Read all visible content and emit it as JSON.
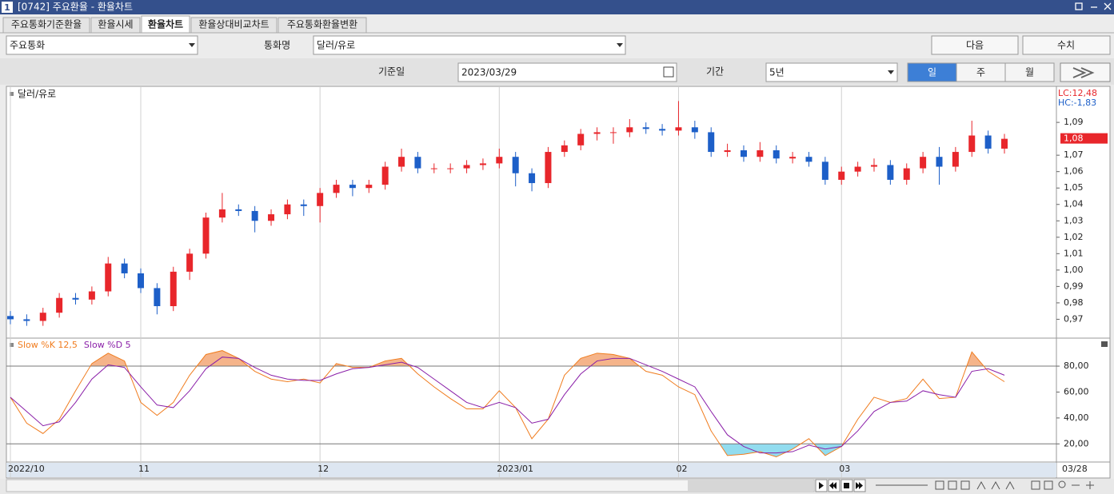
{
  "window": {
    "number": "1",
    "title": "[0742] 주요환율 - 환율차트"
  },
  "tabs": [
    "주요통화기준환율",
    "환율시세",
    "환율차트",
    "환율상대비교차트",
    "주요통화환율변환"
  ],
  "active_tab": 2,
  "controls": {
    "group": "주요통화",
    "currency_label": "통화명",
    "currency": "달러/유로",
    "next": "다음",
    "values": "수치",
    "date_label": "기준일",
    "date": "2023/03/29",
    "period_label": "기간",
    "period": "5년",
    "intervals": [
      "일",
      "주",
      "월"
    ],
    "active_interval": 0
  },
  "chart_data": [
    {
      "type": "candlestick",
      "title": "달러/유로",
      "up_color": "#e8262b",
      "down_color": "#1d5fc8",
      "open": [
        0.972,
        0.97,
        0.969,
        0.974,
        0.983,
        0.982,
        0.987,
        1.004,
        0.998,
        0.989,
        0.978,
        0.999,
        1.01,
        1.032,
        1.037,
        1.036,
        1.03,
        1.034,
        1.04,
        1.039,
        1.047,
        1.052,
        1.05,
        1.052,
        1.063,
        1.069,
        1.062,
        1.062,
        1.062,
        1.064,
        1.065,
        1.069,
        1.059,
        1.053,
        1.072,
        1.076,
        1.083,
        1.084,
        1.084,
        1.087,
        1.086,
        1.085,
        1.087,
        1.084,
        1.072,
        1.073,
        1.069,
        1.073,
        1.068,
        1.069,
        1.066,
        1.055,
        1.06,
        1.063,
        1.064,
        1.055,
        1.062,
        1.069,
        1.063,
        1.072,
        1.082,
        1.074
      ],
      "high": [
        0.975,
        0.973,
        0.977,
        0.986,
        0.986,
        0.99,
        1.008,
        1.007,
        1.001,
        0.992,
        1.002,
        1.013,
        1.035,
        1.047,
        1.04,
        1.039,
        1.037,
        1.043,
        1.043,
        1.05,
        1.055,
        1.055,
        1.055,
        1.066,
        1.074,
        1.072,
        1.065,
        1.065,
        1.067,
        1.068,
        1.074,
        1.072,
        1.062,
        1.075,
        1.079,
        1.086,
        1.087,
        1.087,
        1.092,
        1.09,
        1.089,
        1.103,
        1.091,
        1.087,
        1.077,
        1.076,
        1.078,
        1.076,
        1.072,
        1.072,
        1.069,
        1.063,
        1.066,
        1.068,
        1.067,
        1.065,
        1.072,
        1.075,
        1.075,
        1.091,
        1.085,
        1.083
      ],
      "low": [
        0.967,
        0.966,
        0.966,
        0.971,
        0.979,
        0.979,
        0.984,
        0.995,
        0.986,
        0.973,
        0.975,
        0.994,
        1.007,
        1.029,
        1.033,
        1.023,
        1.027,
        1.031,
        1.033,
        1.029,
        1.044,
        1.045,
        1.047,
        1.049,
        1.06,
        1.059,
        1.059,
        1.059,
        1.059,
        1.061,
        1.062,
        1.051,
        1.048,
        1.05,
        1.069,
        1.073,
        1.079,
        1.077,
        1.081,
        1.083,
        1.082,
        1.082,
        1.08,
        1.069,
        1.069,
        1.066,
        1.066,
        1.065,
        1.065,
        1.063,
        1.052,
        1.052,
        1.057,
        1.06,
        1.052,
        1.052,
        1.059,
        1.052,
        1.06,
        1.069,
        1.071,
        1.071
      ],
      "close": [
        0.97,
        0.969,
        0.974,
        0.983,
        0.982,
        0.987,
        1.004,
        0.998,
        0.989,
        0.978,
        0.999,
        1.01,
        1.032,
        1.037,
        1.036,
        1.03,
        1.034,
        1.04,
        1.039,
        1.047,
        1.052,
        1.05,
        1.052,
        1.063,
        1.069,
        1.062,
        1.062,
        1.062,
        1.064,
        1.065,
        1.069,
        1.059,
        1.053,
        1.072,
        1.076,
        1.083,
        1.084,
        1.084,
        1.087,
        1.086,
        1.085,
        1.087,
        1.084,
        1.072,
        1.073,
        1.069,
        1.073,
        1.068,
        1.069,
        1.066,
        1.055,
        1.06,
        1.063,
        1.064,
        1.055,
        1.062,
        1.069,
        1.063,
        1.072,
        1.082,
        1.074,
        1.08
      ],
      "last_label": "1,08",
      "lc_label": "LC:12,48",
      "hc_label": "HC:-1,83",
      "ylim": [
        0.959,
        1.111
      ],
      "yticks": [
        {
          "value": 0.97,
          "label": "0,97"
        },
        {
          "value": 0.98,
          "label": "0,98"
        },
        {
          "value": 0.99,
          "label": "0,99"
        },
        {
          "value": 1.0,
          "label": "1,00"
        },
        {
          "value": 1.01,
          "label": "1,01"
        },
        {
          "value": 1.02,
          "label": "1,02"
        },
        {
          "value": 1.03,
          "label": "1,03"
        },
        {
          "value": 1.04,
          "label": "1,04"
        },
        {
          "value": 1.05,
          "label": "1,05"
        },
        {
          "value": 1.06,
          "label": "1,06"
        },
        {
          "value": 1.07,
          "label": "1,07"
        },
        {
          "value": 1.09,
          "label": "1,09"
        }
      ]
    },
    {
      "type": "line",
      "categories": [
        "2022/10",
        null,
        null,
        null,
        null,
        null,
        null,
        null,
        "11",
        null,
        null,
        null,
        null,
        null,
        null,
        null,
        null,
        null,
        null,
        "12",
        null,
        null,
        null,
        null,
        null,
        null,
        null,
        null,
        null,
        null,
        "2023/01",
        null,
        null,
        null,
        null,
        null,
        null,
        null,
        null,
        null,
        null,
        "02",
        null,
        null,
        null,
        null,
        null,
        null,
        null,
        null,
        null,
        "03",
        null,
        null,
        null,
        null,
        null,
        null,
        null,
        null,
        null,
        null
      ],
      "last_date": "03/28",
      "series": [
        {
          "name": "Slow %K 12,5",
          "color": "#f07c1e",
          "values": [
            56,
            36,
            28,
            39,
            61,
            82,
            90,
            84,
            52,
            42,
            52,
            73,
            89,
            92,
            86,
            76,
            70,
            68,
            70,
            67,
            82,
            79,
            79,
            84,
            86,
            74,
            64,
            55,
            47,
            47,
            61,
            48,
            24,
            39,
            73,
            86,
            90,
            89,
            86,
            76,
            73,
            64,
            58,
            30,
            11,
            12,
            14,
            10,
            16,
            24,
            11,
            18,
            39,
            56,
            52,
            55,
            70,
            55,
            56,
            91,
            76,
            68
          ]
        },
        {
          "name": "Slow %D 5",
          "color": "#8a1fa8",
          "values": [
            56,
            45,
            34,
            37,
            52,
            70,
            81,
            79,
            64,
            50,
            48,
            61,
            78,
            87,
            86,
            79,
            73,
            70,
            69,
            69,
            74,
            78,
            79,
            81,
            83,
            79,
            70,
            61,
            52,
            48,
            52,
            48,
            36,
            39,
            58,
            74,
            84,
            86,
            86,
            81,
            76,
            70,
            64,
            45,
            27,
            18,
            13,
            13,
            14,
            19,
            16,
            18,
            30,
            45,
            52,
            53,
            61,
            58,
            56,
            76,
            78,
            73
          ]
        }
      ],
      "overbought": 80,
      "oversold": 20,
      "overbought_fill": "#f5b48a",
      "oversold_fill": "#92dcef",
      "ylim": [
        6,
        101
      ],
      "yticks": [
        {
          "value": 20,
          "label": "20,00"
        },
        {
          "value": 40,
          "label": "40,00"
        },
        {
          "value": 60,
          "label": "60,00"
        },
        {
          "value": 80,
          "label": "80,00"
        }
      ]
    }
  ]
}
